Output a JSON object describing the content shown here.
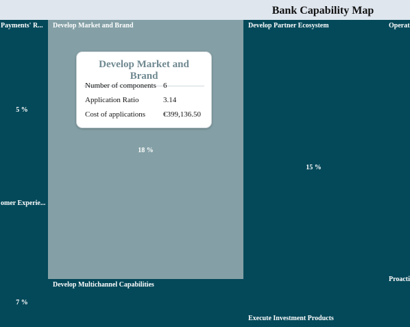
{
  "header": {
    "title": "Bank Capability Map"
  },
  "tiles": [
    {
      "label": "Payments' R...",
      "pct": "5 %"
    },
    {
      "label": "omer Experie...",
      "pct": "7 %"
    },
    {
      "label": "Develop Market and Brand",
      "pct": "18 %"
    },
    {
      "label": "Develop Multichannel Capabilities"
    },
    {
      "label": "Develop Partner Ecosystem",
      "pct": "15 %"
    },
    {
      "label": "Execute Investment Products"
    },
    {
      "label": "Operat"
    },
    {
      "label": "Proacti"
    }
  ],
  "tooltip": {
    "title": "Develop Market and Brand",
    "rows": [
      {
        "key": "Number of components",
        "value": "6"
      },
      {
        "key": "Application Ratio",
        "value": "3.14"
      },
      {
        "key": "Cost of applications",
        "value": "€399,136.50"
      }
    ]
  },
  "colors": {
    "tile": "#04495a",
    "highlight": "#84a0a6",
    "header": "#dfe6ee"
  }
}
